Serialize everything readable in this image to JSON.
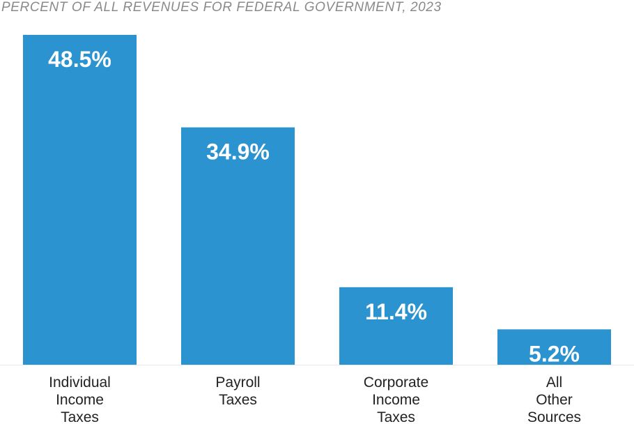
{
  "chart_data": {
    "type": "bar",
    "title": "PERCENT OF ALL REVENUES FOR FEDERAL GOVERNMENT, 2023",
    "xlabel": "",
    "ylabel": "",
    "categories": [
      [
        "Individual",
        "Income",
        "Taxes"
      ],
      [
        "Payroll",
        "Taxes"
      ],
      [
        "Corporate",
        "Income",
        "Taxes"
      ],
      [
        "All",
        "Other",
        "Sources"
      ]
    ],
    "values": [
      48.5,
      34.9,
      11.4,
      5.2
    ],
    "value_labels": [
      "48.5%",
      "34.9%",
      "11.4%",
      "5.2%"
    ],
    "ylim": [
      0,
      48.5
    ],
    "grid": false,
    "legend": "none",
    "bar_color": "#2b93cf",
    "baseline_color": "#e8e8e8"
  }
}
